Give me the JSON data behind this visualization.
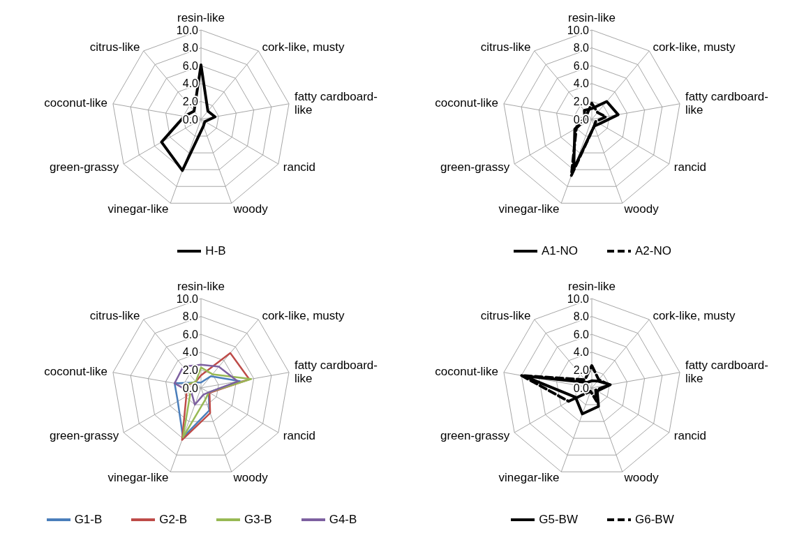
{
  "chart_data": [
    {
      "type": "radar",
      "categories": [
        "resin-like",
        "cork-like, musty",
        "fatty cardboard-like",
        "rancid",
        "woody",
        "vinegar-like",
        "green-grassy",
        "coconut-like",
        "citrus-like"
      ],
      "series": [
        {
          "name": "H-B",
          "color": "#000000",
          "line_style": "solid",
          "values": [
            6.1,
            1.2,
            1.6,
            0.5,
            0.8,
            6.1,
            5.1,
            1.9,
            1.2
          ]
        }
      ],
      "ylim": [
        0,
        10
      ],
      "yticks": [
        {
          "value": 0,
          "label": "0.0"
        },
        {
          "value": 2,
          "label": "2.0"
        },
        {
          "value": 4,
          "label": "4.0"
        },
        {
          "value": 6,
          "label": "6.0"
        },
        {
          "value": 8,
          "label": "8.0"
        },
        {
          "value": 10,
          "label": "10.0"
        }
      ],
      "grid": true,
      "legend": "bottom",
      "marker": "none"
    },
    {
      "type": "radar",
      "categories": [
        "resin-like",
        "cork-like, musty",
        "fatty cardboard-like",
        "rancid",
        "woody",
        "vinegar-like",
        "green-grassy",
        "coconut-like",
        "citrus-like"
      ],
      "series": [
        {
          "name": "A1-NO",
          "color": "#000000",
          "line_style": "solid",
          "values": [
            1.2,
            2.6,
            3.0,
            1.0,
            0.8,
            5.9,
            2.2,
            0.8,
            1.3
          ]
        },
        {
          "name": "A2-NO",
          "color": "#000000",
          "line_style": "dashed",
          "values": [
            1.8,
            1.0,
            1.6,
            0.5,
            0.8,
            6.7,
            2.0,
            0.6,
            0.8
          ]
        }
      ],
      "ylim": [
        0,
        10
      ],
      "yticks": [
        {
          "value": 0,
          "label": "0.0"
        },
        {
          "value": 2,
          "label": "2.0"
        },
        {
          "value": 4,
          "label": "4.0"
        },
        {
          "value": 6,
          "label": "6.0"
        },
        {
          "value": 8,
          "label": "8.0"
        },
        {
          "value": 10,
          "label": "10.0"
        }
      ],
      "grid": true,
      "legend": "bottom",
      "marker": "none"
    },
    {
      "type": "radar",
      "categories": [
        "resin-like",
        "cork-like, musty",
        "fatty cardboard-like",
        "rancid",
        "woody",
        "vinegar-like",
        "green-grassy",
        "coconut-like",
        "citrus-like"
      ],
      "series": [
        {
          "name": "G1-B",
          "color": "#4a7ebb",
          "line_style": "solid",
          "values": [
            0.6,
            1.7,
            4.4,
            1.0,
            2.7,
            5.9,
            3.0,
            3.0,
            0.8
          ]
        },
        {
          "name": "G2-B",
          "color": "#be4b48",
          "line_style": "solid",
          "values": [
            1.4,
            5.1,
            5.5,
            1.1,
            3.0,
            6.2,
            1.9,
            1.6,
            0.9
          ]
        },
        {
          "name": "G3-B",
          "color": "#98b954",
          "line_style": "solid",
          "values": [
            2.3,
            2.0,
            5.7,
            1.0,
            1.4,
            5.9,
            1.4,
            1.9,
            0.9
          ]
        },
        {
          "name": "G4-B",
          "color": "#7d60a0",
          "line_style": "solid",
          "values": [
            2.6,
            3.1,
            4.2,
            1.0,
            0.8,
            2.0,
            1.2,
            3.0,
            3.1
          ]
        }
      ],
      "ylim": [
        0,
        10
      ],
      "yticks": [
        {
          "value": 0,
          "label": "0.0"
        },
        {
          "value": 2,
          "label": "2.0"
        },
        {
          "value": 4,
          "label": "4.0"
        },
        {
          "value": 6,
          "label": "6.0"
        },
        {
          "value": 8,
          "label": "8.0"
        },
        {
          "value": 10,
          "label": "10.0"
        }
      ],
      "grid": true,
      "legend": "bottom",
      "marker": "none"
    },
    {
      "type": "radar",
      "categories": [
        "resin-like",
        "cork-like, musty",
        "fatty cardboard-like",
        "rancid",
        "woody",
        "vinegar-like",
        "green-grassy",
        "coconut-like",
        "citrus-like"
      ],
      "series": [
        {
          "name": "G5-BW",
          "color": "#000000",
          "line_style": "solid",
          "values": [
            0.8,
            1.0,
            2.1,
            0.7,
            2.2,
            3.1,
            2.1,
            7.8,
            0.8
          ]
        },
        {
          "name": "G6-BW",
          "color": "#000000",
          "line_style": "dashed",
          "values": [
            2.5,
            1.2,
            2.0,
            0.5,
            1.6,
            0.4,
            3.0,
            8.0,
            1.2
          ]
        }
      ],
      "ylim": [
        0,
        10
      ],
      "yticks": [
        {
          "value": 0,
          "label": "0.0"
        },
        {
          "value": 2,
          "label": "2.0"
        },
        {
          "value": 4,
          "label": "4.0"
        },
        {
          "value": 6,
          "label": "6.0"
        },
        {
          "value": 8,
          "label": "8.0"
        },
        {
          "value": 10,
          "label": "10.0"
        }
      ],
      "grid": true,
      "legend": "bottom",
      "marker": "none"
    }
  ]
}
